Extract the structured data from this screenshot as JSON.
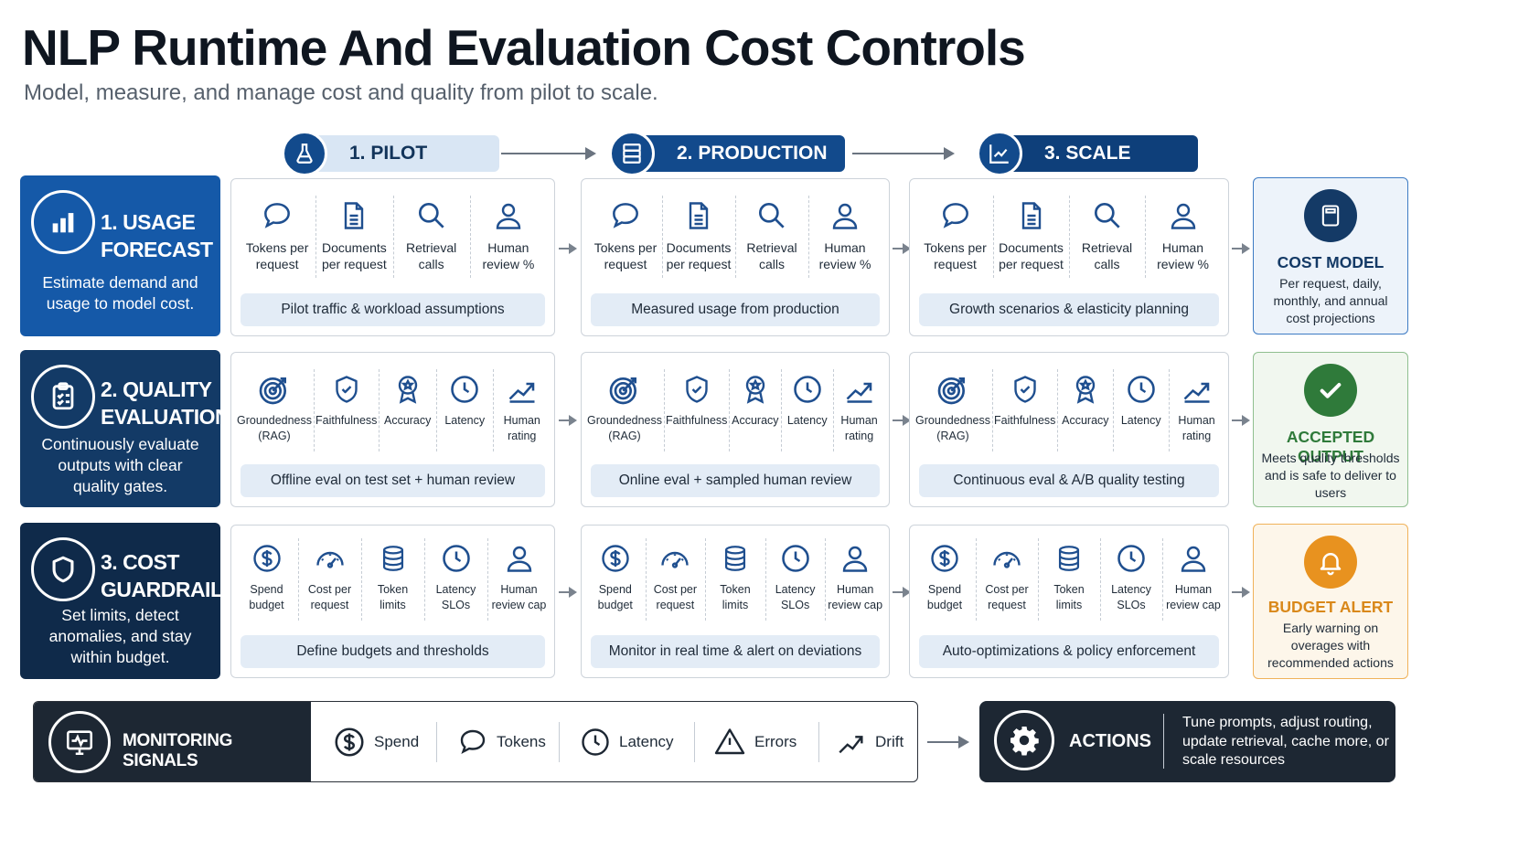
{
  "title": "NLP Runtime And Evaluation Cost Controls",
  "subtitle": "Model, measure, and manage cost and quality from pilot to scale.",
  "stages": [
    {
      "label": "1. PILOT",
      "icon": "flask-icon"
    },
    {
      "label": "2. PRODUCTION",
      "icon": "server-icon"
    },
    {
      "label": "3. SCALE",
      "icon": "chart-growth-icon"
    }
  ],
  "rows": [
    {
      "title_line1": "1. USAGE",
      "title_line2": "FORECAST",
      "description": "Estimate demand and usage to model cost.",
      "color": "#1559a8",
      "icon": "bar-chart-icon",
      "items": [
        {
          "label": "Tokens per request",
          "icon": "speech-bubble-icon"
        },
        {
          "label": "Documents per request",
          "icon": "document-icon"
        },
        {
          "label": "Retrieval calls",
          "icon": "search-icon"
        },
        {
          "label": "Human review %",
          "icon": "person-icon"
        }
      ],
      "notes": [
        "Pilot traffic & workload assumptions",
        "Measured usage from production",
        "Growth scenarios & elasticity planning"
      ],
      "outcome": {
        "title": "COST MODEL",
        "description": "Per request, daily, monthly, and annual cost projections",
        "icon": "calculator-icon",
        "accent": "#143a66",
        "border": "#3d7bc4",
        "bg": "#edf3fa"
      }
    },
    {
      "title_line1": "2. QUALITY",
      "title_line2": "EVALUATION",
      "description": "Continuously evaluate outputs with clear quality gates.",
      "color": "#133a66",
      "icon": "clipboard-check-icon",
      "items": [
        {
          "label": "Groundedness (RAG)",
          "icon": "target-icon"
        },
        {
          "label": "Faithfulness",
          "icon": "shield-check-icon"
        },
        {
          "label": "Accuracy",
          "icon": "award-icon"
        },
        {
          "label": "Latency",
          "icon": "clock-icon"
        },
        {
          "label": "Human rating",
          "icon": "trend-up-icon"
        }
      ],
      "notes": [
        "Offline eval on test set + human review",
        "Online eval + sampled human review",
        "Continuous eval & A/B quality testing"
      ],
      "outcome": {
        "title": "ACCEPTED OUTPUT",
        "description": "Meets quality thresholds and is safe to deliver to users",
        "icon": "check-circle-icon",
        "accent": "#2f7a3a",
        "border": "#8fbf8f",
        "bg": "#f1f7ef"
      }
    },
    {
      "title_line1": "3. COST",
      "title_line2": "GUARDRAILS",
      "description": "Set limits, detect anomalies, and stay within budget.",
      "color": "#0f2a4a",
      "icon": "shield-icon",
      "items": [
        {
          "label": "Spend budget",
          "icon": "dollar-icon"
        },
        {
          "label": "Cost per request",
          "icon": "gauge-icon"
        },
        {
          "label": "Token limits",
          "icon": "database-icon"
        },
        {
          "label": "Latency SLOs",
          "icon": "clock-icon"
        },
        {
          "label": "Human review cap",
          "icon": "person-icon"
        }
      ],
      "notes": [
        "Define budgets and thresholds",
        "Monitor in real time & alert on deviations",
        "Auto-optimizations & policy enforcement"
      ],
      "outcome": {
        "title": "BUDGET ALERT",
        "description": "Early warning on overages with recommended actions",
        "icon": "bell-icon",
        "accent": "#d9881a",
        "border": "#f0b25a",
        "bg": "#fdf6ea"
      }
    }
  ],
  "monitoring": {
    "title": "MONITORING SIGNALS",
    "icon": "monitor-pulse-icon",
    "signals": [
      {
        "label": "Spend",
        "icon": "dollar-icon"
      },
      {
        "label": "Tokens",
        "icon": "speech-bubble-icon"
      },
      {
        "label": "Latency",
        "icon": "clock-icon"
      },
      {
        "label": "Errors",
        "icon": "warning-icon"
      },
      {
        "label": "Drift",
        "icon": "trend-up-icon"
      }
    ]
  },
  "actions": {
    "title": "ACTIONS",
    "icon": "gear-icon",
    "description": "Tune prompts, adjust routing, update retrieval, cache more, or scale resources"
  },
  "colors": {
    "navy": "#124a8c",
    "dark": "#1d2733",
    "icon_stroke": "#1f4f8f"
  }
}
